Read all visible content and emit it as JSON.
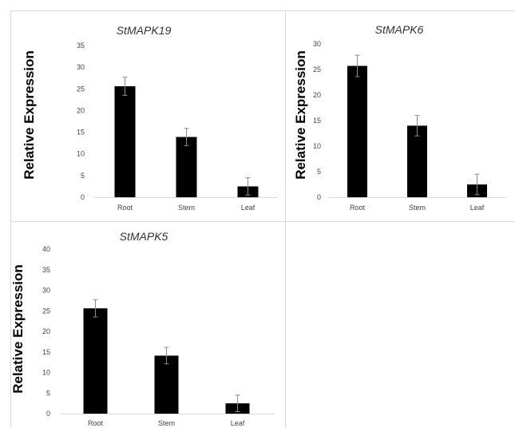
{
  "chart_data": [
    {
      "type": "bar",
      "title": "StMAPK19",
      "ylabel": "Relative  Expression",
      "xlabel": "",
      "categories": [
        "Root",
        "Stem",
        "Leaf"
      ],
      "values": [
        25.6,
        13.9,
        2.5
      ],
      "errors": [
        2.1,
        2.0,
        2.0
      ],
      "ylim": [
        0,
        35
      ],
      "yticks": [
        "0",
        "5",
        "10",
        "15",
        "20",
        "25",
        "30",
        "35"
      ],
      "grid": false,
      "bar_color": "#000000"
    },
    {
      "type": "bar",
      "title": "StMAPK6",
      "ylabel": "Relative  Expression",
      "xlabel": "",
      "categories": [
        "Root",
        "Stem",
        "Leaf"
      ],
      "values": [
        25.7,
        14.0,
        2.5
      ],
      "errors": [
        2.1,
        2.0,
        2.0
      ],
      "ylim": [
        0,
        30
      ],
      "yticks": [
        "0",
        "5",
        "10",
        "15",
        "20",
        "25",
        "30"
      ],
      "grid": false,
      "bar_color": "#000000"
    },
    {
      "type": "bar",
      "title": "StMAPK5",
      "ylabel": "Relative  Expression",
      "xlabel": "",
      "categories": [
        "Root",
        "Stem",
        "Leaf"
      ],
      "values": [
        25.6,
        14.1,
        2.5
      ],
      "errors": [
        2.1,
        2.0,
        2.0
      ],
      "ylim": [
        0,
        40
      ],
      "yticks": [
        "0",
        "5",
        "10",
        "15",
        "20",
        "25",
        "30",
        "35",
        "40"
      ],
      "grid": false,
      "bar_color": "#000000"
    }
  ]
}
